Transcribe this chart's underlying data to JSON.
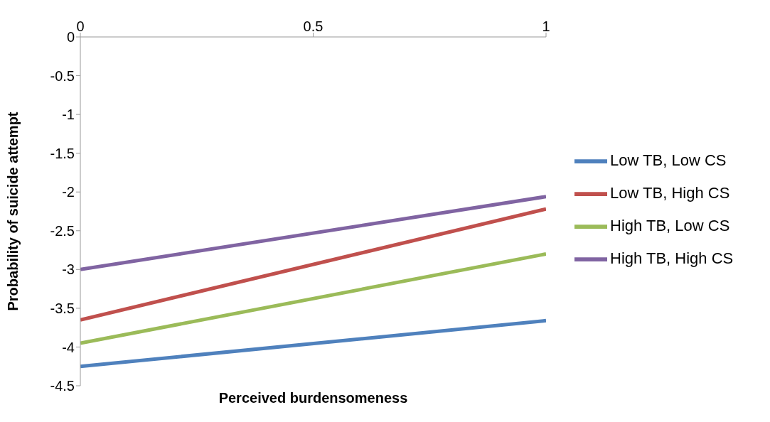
{
  "chart_data": {
    "type": "line",
    "xlabel": "Perceived burdensomeness",
    "ylabel": "Probability of suicide attempt",
    "x": [
      0,
      1
    ],
    "series": [
      {
        "name": "Low TB, Low CS",
        "color": "#4f81bd",
        "values": [
          -4.25,
          -3.66
        ]
      },
      {
        "name": "Low TB, High CS",
        "color": "#c0504d",
        "values": [
          -3.65,
          -2.22
        ]
      },
      {
        "name": "High TB, Low CS",
        "color": "#9bbb59",
        "values": [
          -3.95,
          -2.8
        ]
      },
      {
        "name": "High TB, High CS",
        "color": "#8064a2",
        "values": [
          -3.0,
          -2.06
        ]
      }
    ],
    "xlim": [
      0,
      1
    ],
    "xticks": [
      0,
      0.5,
      1
    ],
    "ylim": [
      -4.5,
      0
    ],
    "yticks": [
      0,
      -0.5,
      -1,
      -1.5,
      -2,
      -2.5,
      -3,
      -3.5,
      -4,
      -4.5
    ],
    "grid": false,
    "legend": "right",
    "marker": "none",
    "line_style": "solid"
  }
}
